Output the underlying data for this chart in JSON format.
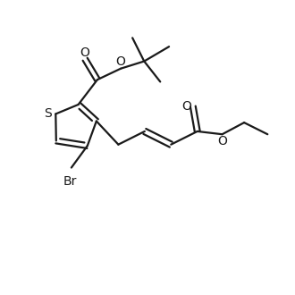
{
  "bg_color": "#ffffff",
  "line_color": "#1a1a1a",
  "line_width": 1.6,
  "font_size": 10,
  "figsize": [
    3.3,
    3.3
  ],
  "dpi": 100,
  "xlim": [
    0,
    10
  ],
  "ylim": [
    0,
    10
  ]
}
